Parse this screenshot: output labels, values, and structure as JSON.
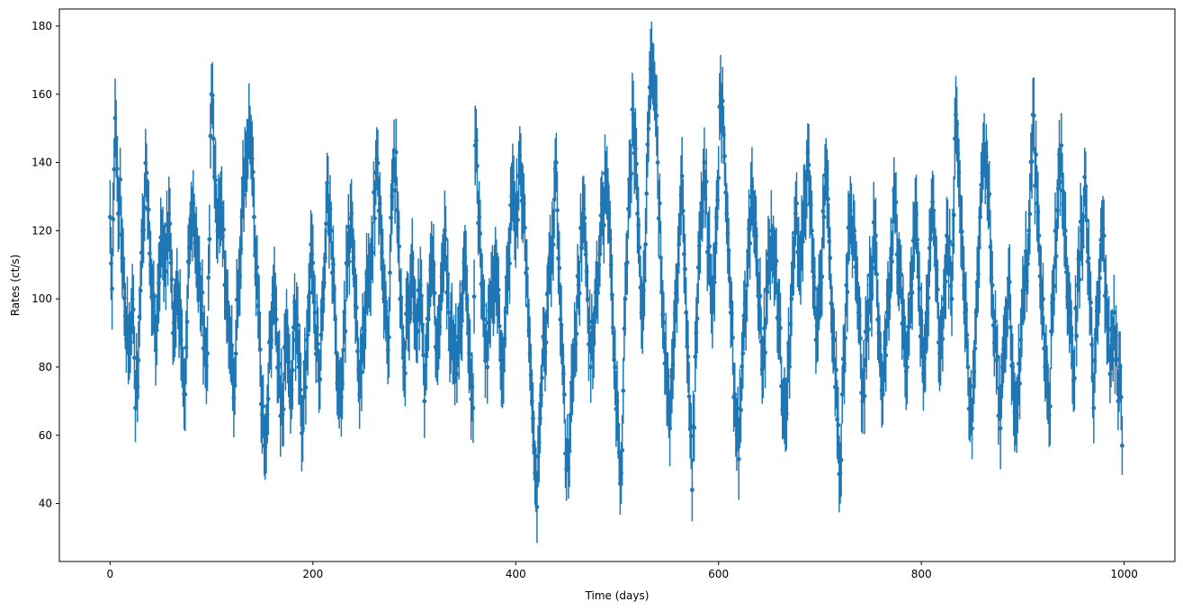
{
  "chart_data": {
    "type": "scatter",
    "style": "errorbar",
    "xlabel": "Time (days)",
    "ylabel": "Rates (ct/s)",
    "xlim": [
      -50,
      1050
    ],
    "ylim": [
      23,
      185
    ],
    "xticks": [
      0,
      200,
      400,
      600,
      800,
      1000
    ],
    "yticks": [
      40,
      60,
      80,
      100,
      120,
      140,
      160,
      180
    ],
    "grid": false,
    "color": "#1f77b4",
    "series": [
      {
        "x_start": 0,
        "x_end": 998,
        "x_step": 1,
        "error_typical": 10,
        "anchors": [
          [
            0,
            124
          ],
          [
            2,
            103
          ],
          [
            4,
            138
          ],
          [
            5,
            153
          ],
          [
            8,
            125
          ],
          [
            10,
            135
          ],
          [
            12,
            112
          ],
          [
            15,
            95
          ],
          [
            18,
            85
          ],
          [
            22,
            100
          ],
          [
            25,
            68
          ],
          [
            28,
            82
          ],
          [
            32,
            120
          ],
          [
            36,
            137
          ],
          [
            40,
            110
          ],
          [
            45,
            85
          ],
          [
            50,
            118
          ],
          [
            55,
            108
          ],
          [
            58,
            125
          ],
          [
            62,
            90
          ],
          [
            66,
            105
          ],
          [
            70,
            88
          ],
          [
            74,
            72
          ],
          [
            78,
            115
          ],
          [
            82,
            128
          ],
          [
            86,
            110
          ],
          [
            90,
            98
          ],
          [
            96,
            84
          ],
          [
            100,
            160
          ],
          [
            102,
            147
          ],
          [
            106,
            120
          ],
          [
            110,
            128
          ],
          [
            114,
            104
          ],
          [
            118,
            88
          ],
          [
            122,
            71
          ],
          [
            126,
            100
          ],
          [
            130,
            124
          ],
          [
            134,
            138
          ],
          [
            138,
            148
          ],
          [
            142,
            124
          ],
          [
            146,
            98
          ],
          [
            150,
            66
          ],
          [
            154,
            59
          ],
          [
            158,
            88
          ],
          [
            162,
            104
          ],
          [
            166,
            80
          ],
          [
            170,
            66
          ],
          [
            174,
            92
          ],
          [
            178,
            70
          ],
          [
            182,
            99
          ],
          [
            186,
            80
          ],
          [
            190,
            62
          ],
          [
            194,
            88
          ],
          [
            198,
            116
          ],
          [
            202,
            96
          ],
          [
            206,
            76
          ],
          [
            210,
            100
          ],
          [
            214,
            134
          ],
          [
            218,
            120
          ],
          [
            222,
            94
          ],
          [
            226,
            72
          ],
          [
            230,
            85
          ],
          [
            234,
            110
          ],
          [
            238,
            125
          ],
          [
            242,
            98
          ],
          [
            246,
            72
          ],
          [
            250,
            88
          ],
          [
            254,
            104
          ],
          [
            258,
            115
          ],
          [
            262,
            137
          ],
          [
            266,
            128
          ],
          [
            270,
            100
          ],
          [
            274,
            85
          ],
          [
            278,
            130
          ],
          [
            282,
            143
          ],
          [
            286,
            100
          ],
          [
            290,
            80
          ],
          [
            294,
            96
          ],
          [
            298,
            112
          ],
          [
            302,
            90
          ],
          [
            306,
            104
          ],
          [
            310,
            70
          ],
          [
            314,
            94
          ],
          [
            318,
            110
          ],
          [
            322,
            85
          ],
          [
            326,
            100
          ],
          [
            330,
            120
          ],
          [
            334,
            96
          ],
          [
            338,
            84
          ],
          [
            342,
            78
          ],
          [
            346,
            92
          ],
          [
            350,
            112
          ],
          [
            354,
            84
          ],
          [
            358,
            68
          ],
          [
            360,
            145
          ],
          [
            364,
            124
          ],
          [
            368,
            98
          ],
          [
            372,
            80
          ],
          [
            376,
            104
          ],
          [
            380,
            110
          ],
          [
            384,
            92
          ],
          [
            388,
            79
          ],
          [
            392,
            106
          ],
          [
            396,
            130
          ],
          [
            400,
            120
          ],
          [
            404,
            142
          ],
          [
            408,
            128
          ],
          [
            412,
            98
          ],
          [
            416,
            70
          ],
          [
            418,
            57
          ],
          [
            420,
            47
          ],
          [
            421,
            39
          ],
          [
            424,
            65
          ],
          [
            428,
            88
          ],
          [
            432,
            102
          ],
          [
            436,
            118
          ],
          [
            440,
            140
          ],
          [
            444,
            94
          ],
          [
            448,
            72
          ],
          [
            450,
            50
          ],
          [
            454,
            66
          ],
          [
            458,
            88
          ],
          [
            462,
            104
          ],
          [
            466,
            125
          ],
          [
            470,
            108
          ],
          [
            474,
            80
          ],
          [
            478,
            96
          ],
          [
            482,
            110
          ],
          [
            486,
            125
          ],
          [
            490,
            134
          ],
          [
            494,
            110
          ],
          [
            498,
            80
          ],
          [
            502,
            55
          ],
          [
            504,
            49
          ],
          [
            508,
            100
          ],
          [
            512,
            135
          ],
          [
            516,
            154
          ],
          [
            520,
            125
          ],
          [
            524,
            96
          ],
          [
            528,
            116
          ],
          [
            532,
            162
          ],
          [
            534,
            170
          ],
          [
            536,
            165
          ],
          [
            540,
            140
          ],
          [
            544,
            102
          ],
          [
            548,
            84
          ],
          [
            552,
            62
          ],
          [
            556,
            88
          ],
          [
            560,
            110
          ],
          [
            564,
            136
          ],
          [
            568,
            96
          ],
          [
            572,
            62
          ],
          [
            574,
            44
          ],
          [
            578,
            90
          ],
          [
            582,
            118
          ],
          [
            586,
            140
          ],
          [
            590,
            115
          ],
          [
            594,
            96
          ],
          [
            598,
            124
          ],
          [
            602,
            160
          ],
          [
            604,
            158
          ],
          [
            608,
            125
          ],
          [
            612,
            96
          ],
          [
            616,
            72
          ],
          [
            620,
            53
          ],
          [
            624,
            84
          ],
          [
            628,
            104
          ],
          [
            632,
            130
          ],
          [
            636,
            122
          ],
          [
            640,
            98
          ],
          [
            644,
            80
          ],
          [
            648,
            102
          ],
          [
            652,
            120
          ],
          [
            656,
            110
          ],
          [
            660,
            94
          ],
          [
            664,
            68
          ],
          [
            668,
            76
          ],
          [
            672,
            100
          ],
          [
            676,
            125
          ],
          [
            680,
            110
          ],
          [
            684,
            128
          ],
          [
            688,
            143
          ],
          [
            692,
            120
          ],
          [
            696,
            88
          ],
          [
            700,
            104
          ],
          [
            704,
            124
          ],
          [
            706,
            138
          ],
          [
            710,
            112
          ],
          [
            714,
            88
          ],
          [
            718,
            63
          ],
          [
            720,
            49
          ],
          [
            722,
            72
          ],
          [
            726,
            104
          ],
          [
            730,
            126
          ],
          [
            734,
            120
          ],
          [
            738,
            96
          ],
          [
            742,
            70
          ],
          [
            746,
            88
          ],
          [
            750,
            104
          ],
          [
            754,
            118
          ],
          [
            758,
            90
          ],
          [
            762,
            72
          ],
          [
            766,
            96
          ],
          [
            770,
            112
          ],
          [
            774,
            128
          ],
          [
            778,
            108
          ],
          [
            782,
            96
          ],
          [
            786,
            80
          ],
          [
            790,
            104
          ],
          [
            794,
            125
          ],
          [
            798,
            103
          ],
          [
            802,
            78
          ],
          [
            806,
            96
          ],
          [
            810,
            126
          ],
          [
            814,
            110
          ],
          [
            818,
            84
          ],
          [
            822,
            100
          ],
          [
            826,
            118
          ],
          [
            830,
            100
          ],
          [
            834,
            154
          ],
          [
            838,
            130
          ],
          [
            842,
            104
          ],
          [
            846,
            80
          ],
          [
            850,
            62
          ],
          [
            854,
            96
          ],
          [
            858,
            124
          ],
          [
            862,
            145
          ],
          [
            866,
            130
          ],
          [
            870,
            104
          ],
          [
            874,
            82
          ],
          [
            878,
            62
          ],
          [
            882,
            88
          ],
          [
            886,
            106
          ],
          [
            890,
            80
          ],
          [
            894,
            66
          ],
          [
            898,
            88
          ],
          [
            902,
            104
          ],
          [
            906,
            120
          ],
          [
            910,
            154
          ],
          [
            914,
            128
          ],
          [
            918,
            104
          ],
          [
            922,
            80
          ],
          [
            926,
            66
          ],
          [
            930,
            100
          ],
          [
            934,
            126
          ],
          [
            938,
            145
          ],
          [
            942,
            120
          ],
          [
            946,
            96
          ],
          [
            950,
            76
          ],
          [
            954,
            104
          ],
          [
            958,
            120
          ],
          [
            962,
            133
          ],
          [
            966,
            100
          ],
          [
            970,
            68
          ],
          [
            974,
            96
          ],
          [
            978,
            120
          ],
          [
            982,
            102
          ],
          [
            986,
            78
          ],
          [
            990,
            96
          ],
          [
            994,
            70
          ],
          [
            996,
            80
          ],
          [
            998,
            57
          ]
        ]
      }
    ]
  }
}
